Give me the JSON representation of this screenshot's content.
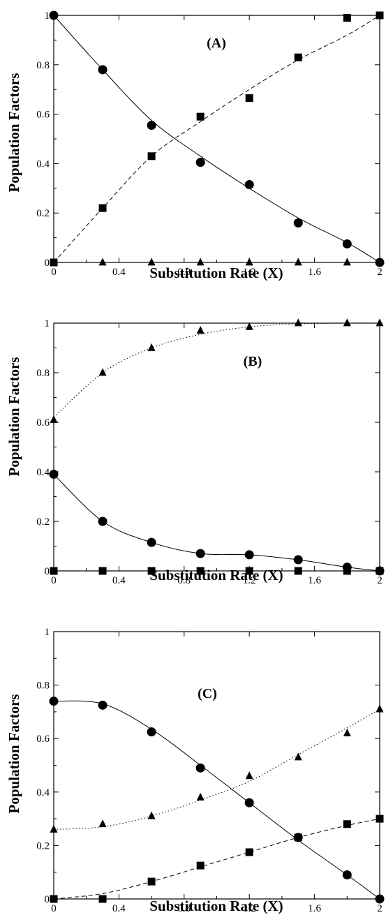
{
  "chart_data": [
    {
      "type": "scatter",
      "title": "(A)",
      "xlabel": "Substitution Rate (X)",
      "ylabel": "Population Factors",
      "xlim": [
        0,
        2
      ],
      "ylim": [
        0,
        1
      ],
      "xticks": [
        "0",
        "0.4",
        "0.8",
        "1.2",
        "1.6",
        "2"
      ],
      "yticks": [
        "0",
        "0.2",
        "0.4",
        "0.6",
        "0.8",
        "1"
      ],
      "series": [
        {
          "marker": "circle",
          "line": "solid",
          "x": [
            0,
            0.3,
            0.6,
            0.9,
            1.2,
            1.5,
            1.8,
            2.0
          ],
          "y": [
            1.0,
            0.78,
            0.555,
            0.405,
            0.315,
            0.16,
            0.075,
            0.0
          ],
          "fit": [
            1.0,
            0.78,
            0.575,
            0.43,
            0.3,
            0.18,
            0.08,
            0.0
          ]
        },
        {
          "marker": "square",
          "line": "dashed",
          "x": [
            0,
            0.3,
            0.6,
            0.9,
            1.2,
            1.5,
            1.8,
            2.0
          ],
          "y": [
            0.0,
            0.22,
            0.43,
            0.59,
            0.665,
            0.83,
            0.99,
            1.0
          ],
          "fit": [
            0.0,
            0.22,
            0.43,
            0.57,
            0.7,
            0.82,
            0.92,
            1.0
          ]
        },
        {
          "marker": "triangle",
          "line": "none",
          "x": [
            0.3,
            0.6,
            0.9,
            1.2,
            1.5,
            1.8
          ],
          "y": [
            0,
            0,
            0,
            0,
            0,
            0
          ]
        }
      ]
    },
    {
      "type": "scatter",
      "title": "(B)",
      "xlabel": "Substitution Rate (X)",
      "ylabel": "Population Factors",
      "xlim": [
        0,
        2
      ],
      "ylim": [
        0,
        1
      ],
      "xticks": [
        "0",
        "0.4",
        "0.8",
        "1.2",
        "1.6",
        "2"
      ],
      "yticks": [
        "0",
        "0.2",
        "0.4",
        "0.6",
        "0.8",
        "1"
      ],
      "series": [
        {
          "marker": "triangle",
          "line": "dotted",
          "x": [
            0,
            0.3,
            0.6,
            0.9,
            1.2,
            1.5,
            1.8,
            2.0
          ],
          "y": [
            0.61,
            0.8,
            0.9,
            0.97,
            0.985,
            1.0,
            1.0,
            1.0
          ],
          "fit": [
            0.62,
            0.8,
            0.9,
            0.955,
            0.985,
            0.997,
            1.0,
            1.0
          ]
        },
        {
          "marker": "circle",
          "line": "solid",
          "x": [
            0,
            0.3,
            0.6,
            0.9,
            1.2,
            1.5,
            1.8,
            2.0
          ],
          "y": [
            0.39,
            0.2,
            0.115,
            0.07,
            0.065,
            0.045,
            0.015,
            0.0
          ],
          "fit": [
            0.39,
            0.2,
            0.115,
            0.07,
            0.065,
            0.045,
            0.015,
            0.0
          ]
        },
        {
          "marker": "square",
          "line": "solid",
          "x": [
            0,
            0.3,
            0.6,
            0.9,
            1.2,
            1.5,
            1.8,
            2.0
          ],
          "y": [
            0,
            0,
            0,
            0,
            0,
            0,
            0,
            0
          ],
          "fit": [
            0,
            0,
            0,
            0,
            0,
            0,
            0,
            0
          ]
        }
      ]
    },
    {
      "type": "scatter",
      "title": "(C)",
      "xlabel": "Substitution Rate (X)",
      "ylabel": "Population Factors",
      "xlim": [
        0,
        2
      ],
      "ylim": [
        0,
        1
      ],
      "xticks": [
        "0",
        "0.4",
        "0.8",
        "1.2",
        "1.6",
        "2"
      ],
      "yticks": [
        "0",
        "0.2",
        "0.4",
        "0.6",
        "0.8",
        "1"
      ],
      "series": [
        {
          "marker": "circle",
          "line": "solid",
          "x": [
            0,
            0.3,
            0.6,
            0.9,
            1.2,
            1.5,
            1.8,
            2.0
          ],
          "y": [
            0.74,
            0.725,
            0.625,
            0.49,
            0.36,
            0.23,
            0.09,
            0.0
          ],
          "fit": [
            0.74,
            0.73,
            0.635,
            0.5,
            0.36,
            0.22,
            0.09,
            0.0
          ]
        },
        {
          "marker": "triangle",
          "line": "dotted",
          "x": [
            0,
            0.3,
            0.6,
            0.9,
            1.2,
            1.5,
            1.8,
            2.0
          ],
          "y": [
            0.26,
            0.28,
            0.31,
            0.38,
            0.46,
            0.53,
            0.62,
            0.71
          ],
          "fit": [
            0.26,
            0.27,
            0.31,
            0.37,
            0.44,
            0.54,
            0.64,
            0.71
          ]
        },
        {
          "marker": "square",
          "line": "dashed",
          "x": [
            0,
            0.3,
            0.6,
            0.9,
            1.2,
            1.5,
            1.8,
            2.0
          ],
          "y": [
            0.0,
            0.0,
            0.065,
            0.125,
            0.175,
            0.23,
            0.28,
            0.3
          ],
          "fit": [
            0.0,
            0.02,
            0.065,
            0.12,
            0.175,
            0.23,
            0.275,
            0.3
          ]
        }
      ]
    }
  ]
}
